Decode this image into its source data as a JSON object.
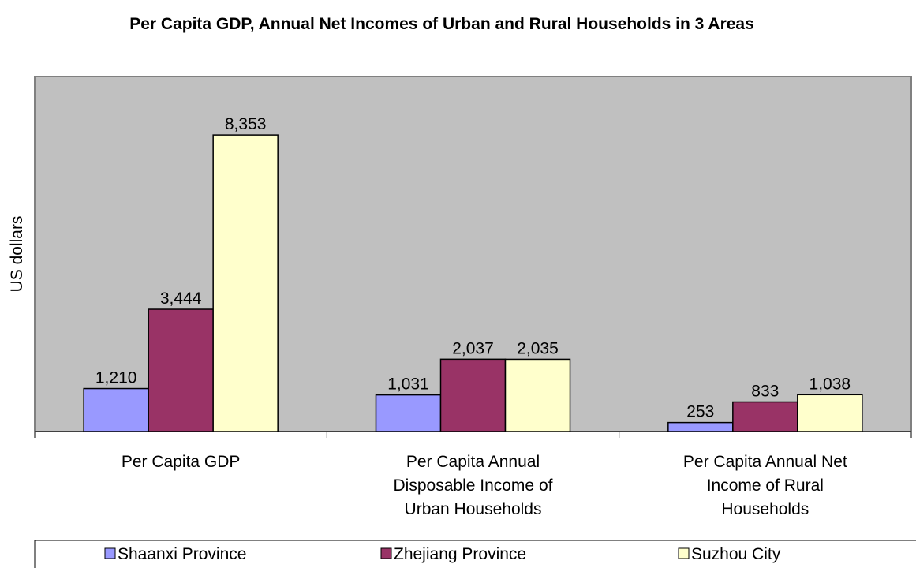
{
  "chart_data": {
    "type": "bar",
    "title": "Per Capita GDP, Annual Net Incomes of Urban and Rural Households in 3 Areas",
    "y_label": "US dollars",
    "categories": [
      "Per Capita GDP",
      "Per Capita Annual Disposable Income of Urban Households",
      "Per Capita Annual Net Income of Rural Households"
    ],
    "series": [
      {
        "name": "Shaanxi Province",
        "color": "#9999ff",
        "values": [
          1210,
          1031,
          253
        ],
        "value_labels": [
          "1,210",
          "1,031",
          "253"
        ]
      },
      {
        "name": "Zhejiang Province",
        "color": "#993366",
        "values": [
          3444,
          2037,
          833
        ],
        "value_labels": [
          "3,444",
          "2,037",
          "833"
        ]
      },
      {
        "name": "Suzhou City",
        "color": "#ffffcc",
        "values": [
          8353,
          2035,
          1038
        ],
        "value_labels": [
          "8,353",
          "2,035",
          "1,038"
        ]
      }
    ],
    "ylim": [
      0,
      10000
    ],
    "legend": "bottom"
  }
}
